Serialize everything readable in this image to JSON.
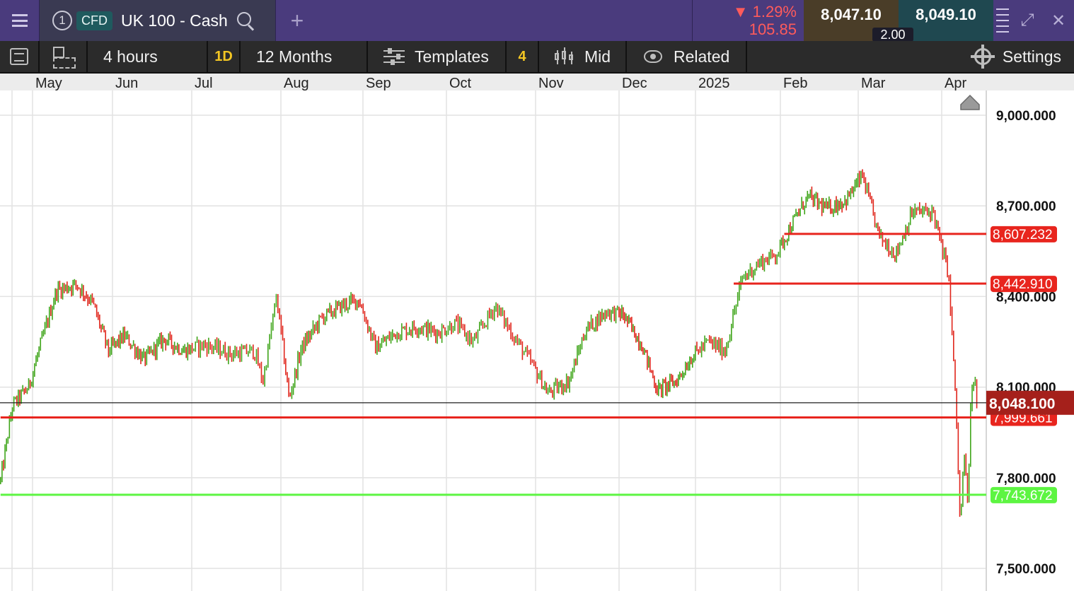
{
  "topbar": {
    "chart_number": "1",
    "instrument_type": "CFD",
    "instrument_name": "UK 100 - Cash",
    "change_percent": "1.29%",
    "change_points": "105.85",
    "change_direction_icon": "triangle-down-icon",
    "sell_price": "8,047.10",
    "buy_price": "8,049.10",
    "spread": "2.00"
  },
  "toolbar": {
    "interval": "4 hours",
    "interval_badge": "1D",
    "range": "12 Months",
    "templates_label": "Templates",
    "indicator_count": "4",
    "price_type": "Mid",
    "related_label": "Related",
    "settings_label": "Settings"
  },
  "chart_data": {
    "type": "candlestick",
    "instrument": "UK 100 - Cash",
    "interval": "4 hours",
    "range": "12 Months",
    "colors": {
      "up": "#3fa51a",
      "down": "#e0251b",
      "resistance": "#e8251e",
      "support": "#5df542",
      "current": "#a5201b"
    },
    "x_tick_labels": [
      "May",
      "Jun",
      "Jul",
      "Aug",
      "Sep",
      "Oct",
      "Nov",
      "Dec",
      "2025",
      "Feb",
      "Mar",
      "Apr"
    ],
    "y_tick_labels": [
      "9,000.000",
      "8,700.000",
      "8,400.000",
      "8,100.000",
      "7,800.000",
      "7,500.000"
    ],
    "y_ticks": [
      9000,
      8700,
      8400,
      8100,
      7800,
      7500
    ],
    "ylim": [
      7430,
      9070
    ],
    "grid": true,
    "horizontal_lines": [
      {
        "label": "8,607.232",
        "value": 8607.232,
        "color": "#e8251e",
        "from_month_index": 9.05
      },
      {
        "label": "8,442.910",
        "value": 8442.91,
        "color": "#e8251e",
        "from_month_index": 8.45
      },
      {
        "label": "7,999.661",
        "value": 7999.661,
        "color": "#e8251e",
        "from_month_index": -0.4
      },
      {
        "label": "7,743.672",
        "value": 7743.672,
        "color": "#5df542",
        "from_month_index": -0.4
      }
    ],
    "current_price": {
      "label": "8,048.100",
      "value": 8048.1
    },
    "path": [
      {
        "t": -0.4,
        "v": 7790
      },
      {
        "t": -0.25,
        "v": 8040
      },
      {
        "t": -0.05,
        "v": 8100
      },
      {
        "t": 0.1,
        "v": 8240
      },
      {
        "t": 0.3,
        "v": 8420
      },
      {
        "t": 0.55,
        "v": 8440
      },
      {
        "t": 0.75,
        "v": 8380
      },
      {
        "t": 0.95,
        "v": 8220
      },
      {
        "t": 1.15,
        "v": 8270
      },
      {
        "t": 1.4,
        "v": 8190
      },
      {
        "t": 1.65,
        "v": 8260
      },
      {
        "t": 1.9,
        "v": 8220
      },
      {
        "t": 2.15,
        "v": 8240
      },
      {
        "t": 2.45,
        "v": 8210
      },
      {
        "t": 2.7,
        "v": 8220
      },
      {
        "t": 2.8,
        "v": 8120
      },
      {
        "t": 2.95,
        "v": 8400
      },
      {
        "t": 3.1,
        "v": 8060
      },
      {
        "t": 3.25,
        "v": 8230
      },
      {
        "t": 3.5,
        "v": 8330
      },
      {
        "t": 3.75,
        "v": 8370
      },
      {
        "t": 3.95,
        "v": 8390
      },
      {
        "t": 4.15,
        "v": 8230
      },
      {
        "t": 4.4,
        "v": 8280
      },
      {
        "t": 4.65,
        "v": 8300
      },
      {
        "t": 4.9,
        "v": 8280
      },
      {
        "t": 5.1,
        "v": 8310
      },
      {
        "t": 5.3,
        "v": 8250
      },
      {
        "t": 5.55,
        "v": 8370
      },
      {
        "t": 5.75,
        "v": 8270
      },
      {
        "t": 5.95,
        "v": 8180
      },
      {
        "t": 6.15,
        "v": 8080
      },
      {
        "t": 6.4,
        "v": 8120
      },
      {
        "t": 6.6,
        "v": 8290
      },
      {
        "t": 6.85,
        "v": 8350
      },
      {
        "t": 7.05,
        "v": 8340
      },
      {
        "t": 7.3,
        "v": 8240
      },
      {
        "t": 7.5,
        "v": 8090
      },
      {
        "t": 7.75,
        "v": 8120
      },
      {
        "t": 7.95,
        "v": 8200
      },
      {
        "t": 8.15,
        "v": 8250
      },
      {
        "t": 8.35,
        "v": 8220
      },
      {
        "t": 8.55,
        "v": 8460
      },
      {
        "t": 8.75,
        "v": 8510
      },
      {
        "t": 8.95,
        "v": 8540
      },
      {
        "t": 9.15,
        "v": 8640
      },
      {
        "t": 9.35,
        "v": 8730
      },
      {
        "t": 9.6,
        "v": 8690
      },
      {
        "t": 9.85,
        "v": 8720
      },
      {
        "t": 10.05,
        "v": 8800
      },
      {
        "t": 10.25,
        "v": 8600
      },
      {
        "t": 10.45,
        "v": 8540
      },
      {
        "t": 10.65,
        "v": 8680
      },
      {
        "t": 10.9,
        "v": 8680
      },
      {
        "t": 11.0,
        "v": 8560
      },
      {
        "t": 11.08,
        "v": 8480
      },
      {
        "t": 11.14,
        "v": 8200
      },
      {
        "t": 11.18,
        "v": 7970
      },
      {
        "t": 11.22,
        "v": 7640
      },
      {
        "t": 11.27,
        "v": 7880
      },
      {
        "t": 11.31,
        "v": 7710
      },
      {
        "t": 11.35,
        "v": 8050
      },
      {
        "t": 11.39,
        "v": 8140
      },
      {
        "t": 11.42,
        "v": 8048
      }
    ]
  }
}
